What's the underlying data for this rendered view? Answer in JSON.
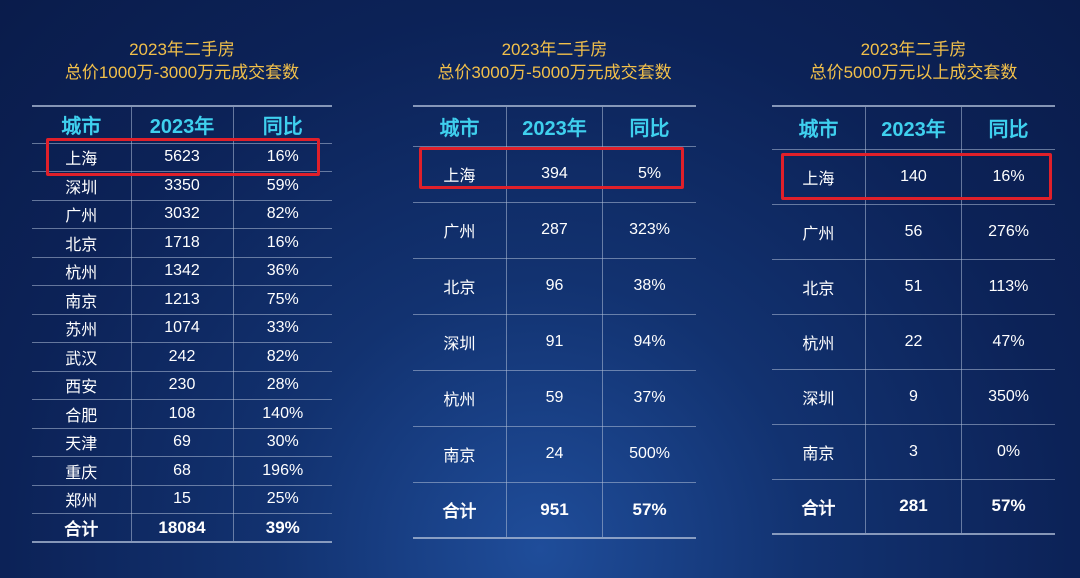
{
  "chart_data": [
    {
      "type": "table",
      "title_line1": "2023年二手房",
      "title_line2": "总价1000万-3000万元成交套数",
      "columns": [
        "城市",
        "2023年",
        "同比"
      ],
      "rows": [
        [
          "上海",
          "5623",
          "16%"
        ],
        [
          "深圳",
          "3350",
          "59%"
        ],
        [
          "广州",
          "3032",
          "82%"
        ],
        [
          "北京",
          "1718",
          "16%"
        ],
        [
          "杭州",
          "1342",
          "36%"
        ],
        [
          "南京",
          "1213",
          "75%"
        ],
        [
          "苏州",
          "1074",
          "33%"
        ],
        [
          "武汉",
          "242",
          "82%"
        ],
        [
          "西安",
          "230",
          "28%"
        ],
        [
          "合肥",
          "108",
          "140%"
        ],
        [
          "天津",
          "69",
          "30%"
        ],
        [
          "重庆",
          "68",
          "196%"
        ],
        [
          "郑州",
          "15",
          "25%"
        ]
      ],
      "total": [
        "合计",
        "18084",
        "39%"
      ],
      "highlighted_row": "上海"
    },
    {
      "type": "table",
      "title_line1": "2023年二手房",
      "title_line2": "总价3000万-5000万元成交套数",
      "columns": [
        "城市",
        "2023年",
        "同比"
      ],
      "rows": [
        [
          "上海",
          "394",
          "5%"
        ],
        [
          "广州",
          "287",
          "323%"
        ],
        [
          "北京",
          "96",
          "38%"
        ],
        [
          "深圳",
          "91",
          "94%"
        ],
        [
          "杭州",
          "59",
          "37%"
        ],
        [
          "南京",
          "24",
          "500%"
        ]
      ],
      "total": [
        "合计",
        "951",
        "57%"
      ],
      "highlighted_row": "上海"
    },
    {
      "type": "table",
      "title_line1": "2023年二手房",
      "title_line2": "总价5000万元以上成交套数",
      "columns": [
        "城市",
        "2023年",
        "同比"
      ],
      "rows": [
        [
          "上海",
          "140",
          "16%"
        ],
        [
          "广州",
          "56",
          "276%"
        ],
        [
          "北京",
          "51",
          "113%"
        ],
        [
          "杭州",
          "22",
          "47%"
        ],
        [
          "深圳",
          "9",
          "350%"
        ],
        [
          "南京",
          "3",
          "0%"
        ]
      ],
      "total": [
        "合计",
        "281",
        "57%"
      ],
      "highlighted_row": "上海"
    }
  ],
  "colors": {
    "title": "#f2c04a",
    "header": "#3fd0ee",
    "highlight_border": "#e0202a",
    "background": "#0c2257"
  }
}
